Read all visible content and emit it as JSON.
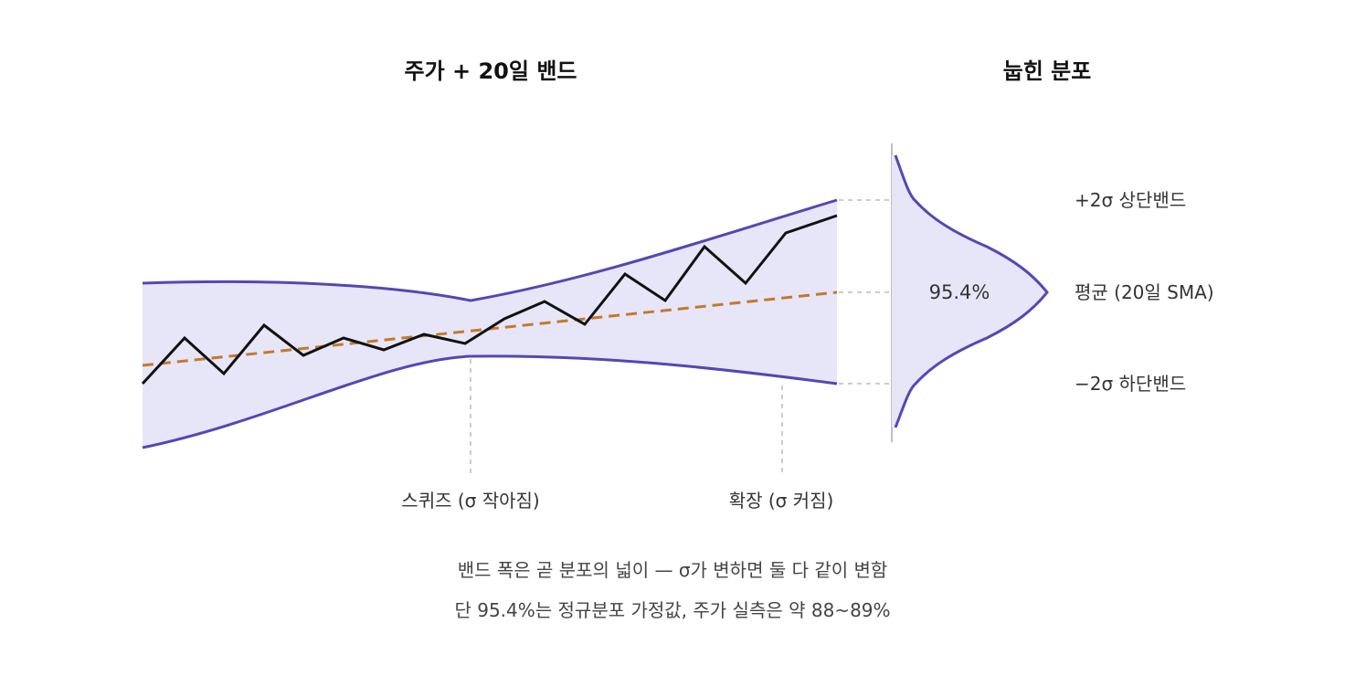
{
  "titles": {
    "left": "주가 + 20일 밴드",
    "right": "눕힌 분포"
  },
  "band_labels": {
    "upper": "+2σ 상단밴드",
    "mean": "평균 (20일 SMA)",
    "lower": "−2σ 하단밴드"
  },
  "distribution_pct": "95.4%",
  "annotations": {
    "squeeze": "스퀴즈 (σ 작아짐)",
    "expansion": "확장 (σ 커짐)"
  },
  "captions": {
    "line1": "밴드 폭은 곧 분포의 넓이 — σ가 변하면 둘 다 같이 변함",
    "line2": "단 95.4%는 정규분포 가정값, 주가 실측은 약 88~89%"
  },
  "colors": {
    "band_fill": "#e7e6f9",
    "band_line": "#5547b3",
    "price_line": "#111111",
    "sma_line": "#c27a2b",
    "guide": "#bbbbbb",
    "axis": "#aaaaaa"
  },
  "icons": []
}
